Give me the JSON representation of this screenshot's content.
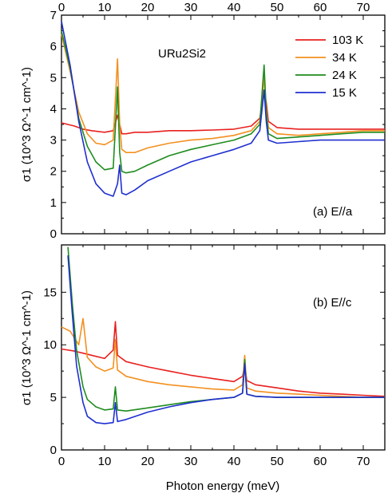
{
  "chart_data": [
    {
      "type": "line",
      "panel": "top",
      "xlabel": "",
      "ylabel": "σ1 (10^3 Ω^-1 cm^-1)",
      "xlim": [
        0,
        75
      ],
      "ylim": [
        0,
        7
      ],
      "xticks": [
        "0",
        "10",
        "20",
        "30",
        "40",
        "50",
        "60",
        "70"
      ],
      "yticks": [
        "0",
        "1",
        "2",
        "3",
        "4",
        "5",
        "6",
        "7"
      ],
      "material": "URu2Si2",
      "annotation": "(a) E//a",
      "legend": {
        "placement": "top-right",
        "entries": [
          "103 K",
          "34 K",
          "24 K",
          "15 K"
        ]
      },
      "series": [
        {
          "name": "103 K",
          "color": "#e8201f",
          "x": [
            0,
            3,
            5,
            7,
            10,
            12,
            13,
            13.5,
            14,
            15,
            17,
            20,
            25,
            30,
            35,
            40,
            44,
            46,
            47,
            47.5,
            48,
            50,
            55,
            60,
            65,
            70,
            75
          ],
          "y": [
            3.55,
            3.45,
            3.35,
            3.3,
            3.25,
            3.3,
            3.8,
            3.5,
            3.2,
            3.2,
            3.25,
            3.25,
            3.3,
            3.3,
            3.32,
            3.35,
            3.45,
            3.7,
            4.6,
            4.2,
            3.6,
            3.4,
            3.35,
            3.35,
            3.35,
            3.35,
            3.35
          ]
        },
        {
          "name": "34 K",
          "color": "#f39020",
          "x": [
            0,
            2,
            4,
            6,
            8,
            10,
            12,
            13,
            13.5,
            14,
            15,
            17,
            20,
            25,
            30,
            35,
            40,
            44,
            46,
            47,
            47.5,
            48,
            50,
            55,
            60,
            65,
            70,
            75
          ],
          "y": [
            6.4,
            5.2,
            3.9,
            3.2,
            2.9,
            2.85,
            3.0,
            5.6,
            3.5,
            2.7,
            2.6,
            2.6,
            2.75,
            2.9,
            3.0,
            3.05,
            3.15,
            3.3,
            3.6,
            5.0,
            4.0,
            3.4,
            3.2,
            3.15,
            3.2,
            3.25,
            3.3,
            3.3
          ]
        },
        {
          "name": "24 K",
          "color": "#1e8c1e",
          "x": [
            0,
            2,
            4,
            6,
            8,
            10,
            12,
            13,
            13.5,
            14,
            15,
            17,
            20,
            25,
            30,
            35,
            40,
            44,
            46,
            47,
            47.5,
            48,
            50,
            55,
            60,
            65,
            70,
            75
          ],
          "y": [
            6.5,
            5.3,
            3.7,
            2.8,
            2.3,
            2.05,
            2.1,
            4.7,
            2.6,
            2.0,
            1.95,
            2.0,
            2.2,
            2.5,
            2.7,
            2.85,
            3.0,
            3.2,
            3.5,
            5.4,
            3.9,
            3.2,
            3.05,
            3.1,
            3.15,
            3.2,
            3.25,
            3.25
          ]
        },
        {
          "name": "15 K",
          "color": "#1f2fd0",
          "x": [
            0,
            2,
            4,
            6,
            8,
            10,
            12,
            13,
            13.5,
            14,
            15,
            17,
            20,
            25,
            30,
            35,
            40,
            44,
            46,
            47,
            47.5,
            48,
            50,
            55,
            60,
            65,
            70,
            75
          ],
          "y": [
            6.8,
            5.4,
            3.6,
            2.3,
            1.6,
            1.3,
            1.2,
            1.6,
            2.2,
            1.3,
            1.25,
            1.4,
            1.7,
            2.0,
            2.3,
            2.5,
            2.7,
            2.9,
            3.3,
            4.6,
            3.6,
            3.0,
            2.9,
            2.95,
            3.0,
            3.0,
            3.0,
            3.0
          ]
        }
      ]
    },
    {
      "type": "line",
      "panel": "bottom",
      "xlabel": "Photon energy (meV)",
      "ylabel": "σ1 (10^3 Ω^-1 cm^-1)",
      "xlim": [
        0,
        75
      ],
      "ylim": [
        0,
        19.5
      ],
      "xticks": [
        "0",
        "10",
        "20",
        "30",
        "40",
        "50",
        "60",
        "70"
      ],
      "yticks": [
        "0",
        "5",
        "10",
        "15"
      ],
      "annotation": "(b) E//c",
      "series": [
        {
          "name": "103 K",
          "color": "#e8201f",
          "x": [
            0,
            3,
            5,
            8,
            10,
            12,
            12.5,
            13,
            15,
            20,
            25,
            30,
            35,
            40,
            42,
            42.5,
            43,
            45,
            50,
            55,
            60,
            65,
            70,
            75
          ],
          "y": [
            9.6,
            9.4,
            9.2,
            8.9,
            8.7,
            9.5,
            12.2,
            9.0,
            8.4,
            7.9,
            7.5,
            7.1,
            6.8,
            6.5,
            7.0,
            8.0,
            6.6,
            6.2,
            5.9,
            5.6,
            5.4,
            5.3,
            5.2,
            5.1
          ]
        },
        {
          "name": "34 K",
          "color": "#f39020",
          "x": [
            0,
            2,
            4,
            5,
            6,
            8,
            10,
            12,
            12.5,
            13,
            15,
            20,
            25,
            30,
            35,
            40,
            42,
            42.5,
            43,
            45,
            50,
            55,
            60,
            65,
            70,
            75
          ],
          "y": [
            11.7,
            11.3,
            10.0,
            12.5,
            8.8,
            7.9,
            7.5,
            7.8,
            10.5,
            7.6,
            7.0,
            6.5,
            6.2,
            6.0,
            5.8,
            5.7,
            6.2,
            9.0,
            5.9,
            5.6,
            5.4,
            5.3,
            5.2,
            5.1,
            5.0,
            5.0
          ]
        },
        {
          "name": "24 K",
          "color": "#1e8c1e",
          "x": [
            1.5,
            2.5,
            3.5,
            5,
            6,
            8,
            10,
            12,
            12.5,
            13,
            15,
            20,
            25,
            30,
            35,
            40,
            42,
            42.5,
            43,
            45,
            50,
            55,
            60,
            65,
            70,
            75
          ],
          "y": [
            19.3,
            14.0,
            9.5,
            6.0,
            4.8,
            4.1,
            3.8,
            3.9,
            6.0,
            3.8,
            3.7,
            4.0,
            4.3,
            4.6,
            4.8,
            5.0,
            5.4,
            8.6,
            5.3,
            5.1,
            5.0,
            5.0,
            5.0,
            5.0,
            5.0,
            5.0
          ]
        },
        {
          "name": "15 K",
          "color": "#1f2fd0",
          "x": [
            1.5,
            2.5,
            3.5,
            5,
            6,
            8,
            10,
            12,
            12.5,
            13,
            15,
            20,
            25,
            30,
            35,
            40,
            42,
            42.5,
            43,
            45,
            50,
            55,
            60,
            65,
            70,
            75
          ],
          "y": [
            18.5,
            13.0,
            8.0,
            4.5,
            3.2,
            2.6,
            2.5,
            2.6,
            4.5,
            2.7,
            2.9,
            3.6,
            4.1,
            4.5,
            4.8,
            5.0,
            5.4,
            8.2,
            5.3,
            5.1,
            5.0,
            5.0,
            5.0,
            5.0,
            5.0,
            5.0
          ]
        }
      ]
    }
  ]
}
